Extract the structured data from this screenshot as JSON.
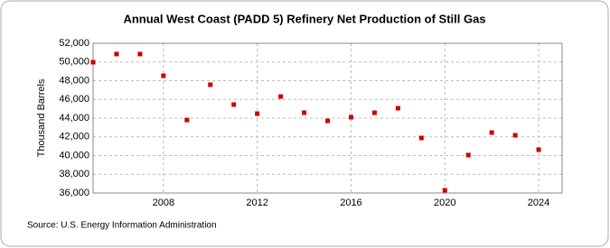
{
  "chart_data": {
    "type": "scatter",
    "title": "Annual West Coast (PADD 5) Refinery Net Production of Still Gas",
    "y_label": "Thousand Barrels",
    "source": "Source: U.S. Energy Information Administration",
    "x": [
      2005,
      2006,
      2007,
      2008,
      2009,
      2010,
      2011,
      2012,
      2013,
      2014,
      2015,
      2016,
      2017,
      2018,
      2019,
      2020,
      2021,
      2022,
      2023,
      2024
    ],
    "values": [
      49980,
      50850,
      50850,
      48530,
      43800,
      47570,
      45450,
      44480,
      46310,
      44580,
      43710,
      44100,
      44580,
      45060,
      41880,
      36290,
      40050,
      42460,
      42170,
      40630
    ],
    "color": "#cc0000",
    "xlim": [
      2005,
      2025
    ],
    "xticks": [
      2008,
      2012,
      2016,
      2020,
      2024
    ],
    "ylim": [
      36000,
      52000
    ],
    "yticks": [
      {
        "value": 36000,
        "label": "36,000"
      },
      {
        "value": 38000,
        "label": "38,000"
      },
      {
        "value": 40000,
        "label": "40,000"
      },
      {
        "value": 42000,
        "label": "42,000"
      },
      {
        "value": 44000,
        "label": "44,000"
      },
      {
        "value": 46000,
        "label": "46,000"
      },
      {
        "value": 48000,
        "label": "48,000"
      },
      {
        "value": 50000,
        "label": "50,000"
      },
      {
        "value": 52000,
        "label": "52,000"
      }
    ],
    "grid": true
  }
}
